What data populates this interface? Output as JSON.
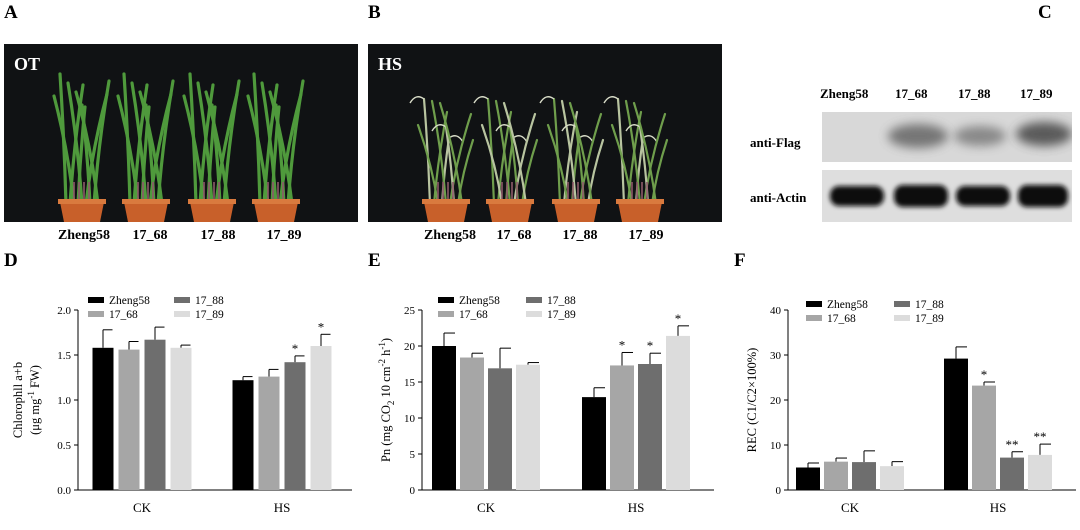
{
  "panels": {
    "A": {
      "letter": "A",
      "tag": "OT",
      "labels": [
        "Zheng58",
        "17_68",
        "17_88",
        "17_89"
      ]
    },
    "B": {
      "letter": "B",
      "tag": "HS",
      "labels": [
        "Zheng58",
        "17_68",
        "17_88",
        "17_89"
      ]
    },
    "C": {
      "letter": "C",
      "lanes": [
        "Zheng58",
        "17_68",
        "17_88",
        "17_89"
      ],
      "rows": [
        "anti-Flag",
        "anti-Actin"
      ]
    },
    "D": {
      "letter": "D"
    },
    "E": {
      "letter": "E"
    },
    "F": {
      "letter": "F"
    }
  },
  "colors": {
    "Zheng58": "#000000",
    "17_68": "#a6a6a6",
    "17_88": "#6e6e6e",
    "17_89": "#dcdcdc",
    "photo_bg": "#101214",
    "pot": "#c8602a",
    "leaf": "#4f9a3c"
  },
  "chart_data": [
    {
      "panel": "D",
      "type": "bar",
      "categories": [
        "CK",
        "HS"
      ],
      "series": [
        {
          "name": "Zheng58",
          "values": [
            1.58,
            1.22
          ],
          "errors": [
            0.2,
            0.04
          ],
          "sig": [
            "",
            ""
          ]
        },
        {
          "name": "17_68",
          "values": [
            1.56,
            1.26
          ],
          "errors": [
            0.09,
            0.08
          ],
          "sig": [
            "",
            ""
          ]
        },
        {
          "name": "17_88",
          "values": [
            1.67,
            1.42
          ],
          "errors": [
            0.14,
            0.07
          ],
          "sig": [
            "",
            "*"
          ]
        },
        {
          "name": "17_89",
          "values": [
            1.58,
            1.6
          ],
          "errors": [
            0.03,
            0.13
          ],
          "sig": [
            "",
            "*"
          ]
        }
      ],
      "ylabel": "Chlorophll a+b (μg mg-1 FW)",
      "ylabel_lines": [
        "Chlorophll a+b",
        "(μg mg",
        "-1",
        " FW)"
      ],
      "ylim": [
        0.0,
        2.0
      ],
      "yticks": [
        "0.0",
        "0.5",
        "1.0",
        "1.5",
        "2.0"
      ],
      "legend": "top-left"
    },
    {
      "panel": "E",
      "type": "bar",
      "categories": [
        "CK",
        "HS"
      ],
      "series": [
        {
          "name": "Zheng58",
          "values": [
            20.0,
            12.9
          ],
          "errors": [
            1.8,
            1.3
          ],
          "sig": [
            "",
            ""
          ]
        },
        {
          "name": "17_68",
          "values": [
            18.4,
            17.3
          ],
          "errors": [
            0.6,
            1.8
          ],
          "sig": [
            "",
            "*"
          ]
        },
        {
          "name": "17_88",
          "values": [
            16.9,
            17.5
          ],
          "errors": [
            2.8,
            1.5
          ],
          "sig": [
            "",
            "*"
          ]
        },
        {
          "name": "17_89",
          "values": [
            17.4,
            21.4
          ],
          "errors": [
            0.3,
            1.4
          ],
          "sig": [
            "",
            "*"
          ]
        }
      ],
      "ylabel": "Pn (mg CO2 10 cm-2 h-1)",
      "ylabel_parts": [
        "Pn (mg CO",
        "2",
        " 10 cm",
        "-2",
        " h",
        "-1",
        ")"
      ],
      "ylim": [
        0,
        25
      ],
      "yticks": [
        "0",
        "5",
        "10",
        "15",
        "20",
        "25"
      ],
      "legend": "top-left"
    },
    {
      "panel": "F",
      "type": "bar",
      "categories": [
        "CK",
        "HS"
      ],
      "series": [
        {
          "name": "Zheng58",
          "values": [
            5.0,
            29.2
          ],
          "errors": [
            1.0,
            2.6
          ],
          "sig": [
            "",
            ""
          ]
        },
        {
          "name": "17_68",
          "values": [
            6.3,
            23.2
          ],
          "errors": [
            0.8,
            0.8
          ],
          "sig": [
            "",
            "*"
          ]
        },
        {
          "name": "17_88",
          "values": [
            6.2,
            7.2
          ],
          "errors": [
            2.5,
            1.3
          ],
          "sig": [
            "",
            "**"
          ]
        },
        {
          "name": "17_89",
          "values": [
            5.3,
            7.8
          ],
          "errors": [
            1.0,
            2.4
          ],
          "sig": [
            "",
            "**"
          ]
        }
      ],
      "ylabel": "REC (C1/C2×100%)",
      "ylim": [
        0,
        40
      ],
      "yticks": [
        "0",
        "10",
        "20",
        "30",
        "40"
      ],
      "legend": "top-left"
    }
  ]
}
